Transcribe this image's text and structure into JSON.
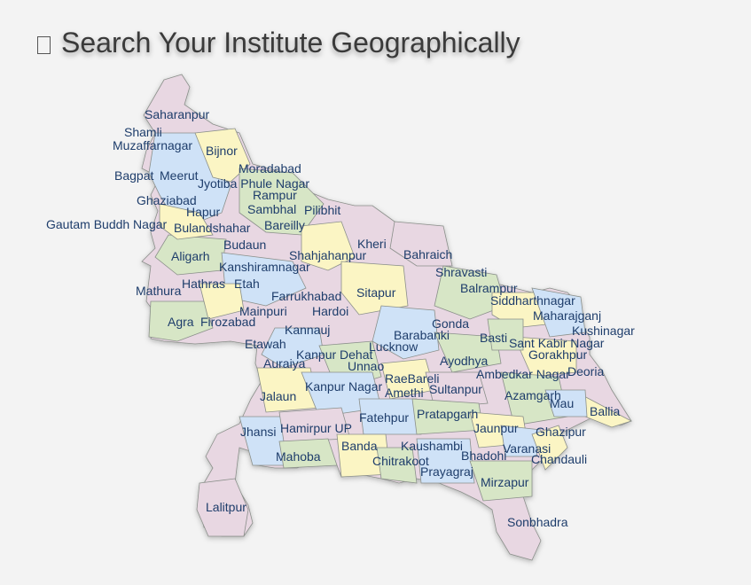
{
  "page": {
    "title": "Search Your Institute Geographically",
    "title_icon": "map-icon"
  },
  "map": {
    "region_name": "UP",
    "colors": {
      "pink": "#e8d7e2",
      "blue": "#cfe2f7",
      "yellow": "#fbf5c4",
      "green": "#d7e6c6",
      "text": "#1e3d6b"
    },
    "districts": [
      "Saharanpur",
      "Shamli",
      "Muzaffarnagar",
      "Bijnor",
      "Bagpat",
      "Meerut",
      "Moradabad",
      "Jyotiba Phule Nagar",
      "Rampur",
      "Ghaziabad",
      "Hapur",
      "Sambhal",
      "Pilibhit",
      "Gautam Buddh Nagar",
      "Bulandshahar",
      "Bareilly",
      "Budaun",
      "Kheri",
      "Aligarh",
      "Shahjahanpur",
      "Bahraich",
      "Kanshiramnagar",
      "Shravasti",
      "Mathura",
      "Hathras",
      "Etah",
      "Balrampur",
      "Farrukhabad",
      "Sitapur",
      "Siddharthnagar",
      "Mainpuri",
      "Hardoi",
      "Maharajganj",
      "Agra",
      "Firozabad",
      "Gonda",
      "Kushinagar",
      "Kannauj",
      "Barabanki",
      "Basti",
      "Etawah",
      "Lucknow",
      "Sant Kabir Nagar",
      "Gorakhpur",
      "Kanpur Dehat",
      "Ayodhya",
      "Auraiya",
      "Unnao",
      "Deoria",
      "Ambedkar Nagar",
      "RaeBareli",
      "Kanpur Nagar",
      "Jalaun",
      "Amethi",
      "Sultanpur",
      "Azamgarh",
      "Mau",
      "Ballia",
      "Fatehpur",
      "Pratapgarh",
      "Jhansi",
      "Hamirpur UP",
      "Jaunpur",
      "Ghazipur",
      "Banda",
      "Kaushambi",
      "Varanasi",
      "Mahoba",
      "Chitrakoot",
      "Bhadohi",
      "Chandauli",
      "Prayagraj",
      "Mirzapur",
      "Lalitpur",
      "Sonbhadra"
    ]
  }
}
